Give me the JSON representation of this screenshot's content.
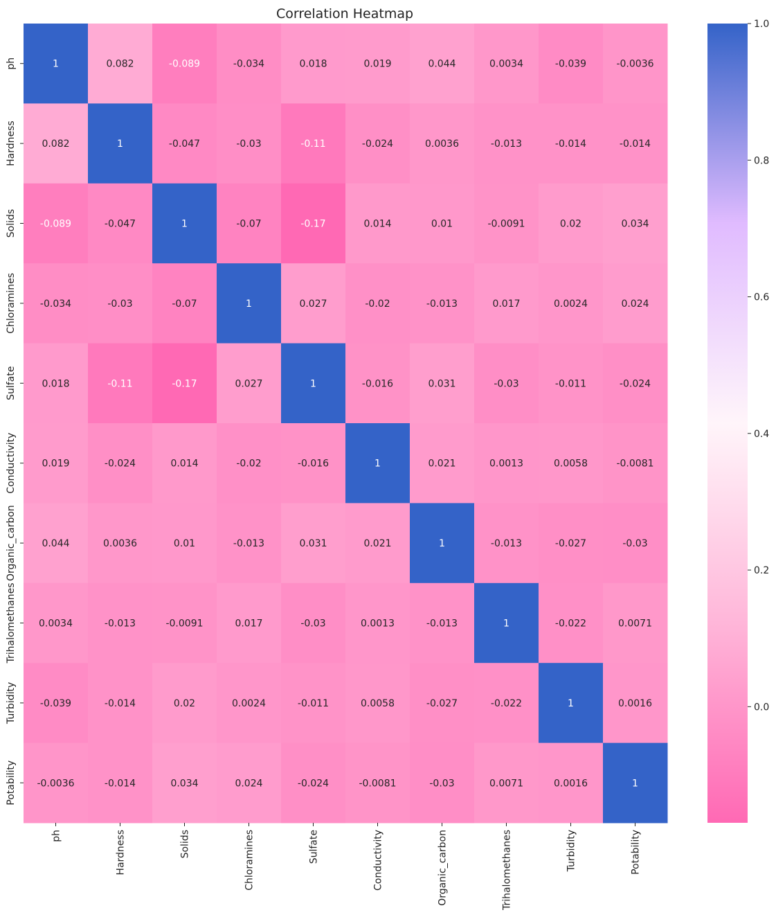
{
  "chart_data": {
    "type": "heatmap",
    "title": "Correlation Heatmap",
    "xlabel": "",
    "ylabel": "",
    "labels": [
      "ph",
      "Hardness",
      "Solids",
      "Chloramines",
      "Sulfate",
      "Conductivity",
      "Organic_carbon",
      "Trihalomethanes",
      "Turbidity",
      "Potability"
    ],
    "matrix": [
      [
        1,
        0.082,
        -0.089,
        -0.034,
        0.018,
        0.019,
        0.044,
        0.0034,
        -0.039,
        -0.0036
      ],
      [
        0.082,
        1,
        -0.047,
        -0.03,
        -0.11,
        -0.024,
        0.0036,
        -0.013,
        -0.014,
        -0.014
      ],
      [
        -0.089,
        -0.047,
        1,
        -0.07,
        -0.17,
        0.014,
        0.01,
        -0.0091,
        0.02,
        0.034
      ],
      [
        -0.034,
        -0.03,
        -0.07,
        1,
        0.027,
        -0.02,
        -0.013,
        0.017,
        0.0024,
        0.024
      ],
      [
        0.018,
        -0.11,
        -0.17,
        0.027,
        1,
        -0.016,
        0.031,
        -0.03,
        -0.011,
        -0.024
      ],
      [
        0.019,
        -0.024,
        0.014,
        -0.02,
        -0.016,
        1,
        0.021,
        0.0013,
        0.0058,
        -0.0081
      ],
      [
        0.044,
        0.0036,
        0.01,
        -0.013,
        0.031,
        0.021,
        1,
        -0.013,
        -0.027,
        -0.03
      ],
      [
        0.0034,
        -0.013,
        -0.0091,
        0.017,
        -0.03,
        0.0013,
        -0.013,
        1,
        -0.022,
        0.0071
      ],
      [
        -0.039,
        -0.014,
        0.02,
        0.0024,
        -0.011,
        0.0058,
        -0.027,
        -0.022,
        1,
        0.0016
      ],
      [
        -0.0036,
        -0.014,
        0.034,
        0.024,
        -0.024,
        -0.0081,
        -0.03,
        0.0071,
        0.0016,
        1
      ]
    ],
    "value_labels": [
      [
        "1",
        "0.082",
        "-0.089",
        "-0.034",
        "0.018",
        "0.019",
        "0.044",
        "0.0034",
        "-0.039",
        "-0.0036"
      ],
      [
        "0.082",
        "1",
        "-0.047",
        "-0.03",
        "-0.11",
        "-0.024",
        "0.0036",
        "-0.013",
        "-0.014",
        "-0.014"
      ],
      [
        "-0.089",
        "-0.047",
        "1",
        "-0.07",
        "-0.17",
        "0.014",
        "0.01",
        "-0.0091",
        "0.02",
        "0.034"
      ],
      [
        "-0.034",
        "-0.03",
        "-0.07",
        "1",
        "0.027",
        "-0.02",
        "-0.013",
        "0.017",
        "0.0024",
        "0.024"
      ],
      [
        "0.018",
        "-0.11",
        "-0.17",
        "0.027",
        "1",
        "-0.016",
        "0.031",
        "-0.03",
        "-0.011",
        "-0.024"
      ],
      [
        "0.019",
        "-0.024",
        "0.014",
        "-0.02",
        "-0.016",
        "1",
        "0.021",
        "0.0013",
        "0.0058",
        "-0.0081"
      ],
      [
        "0.044",
        "0.0036",
        "0.01",
        "-0.013",
        "0.031",
        "0.021",
        "1",
        "-0.013",
        "-0.027",
        "-0.03"
      ],
      [
        "0.0034",
        "-0.013",
        "-0.0091",
        "0.017",
        "-0.03",
        "0.0013",
        "-0.013",
        "1",
        "-0.022",
        "0.0071"
      ],
      [
        "-0.039",
        "-0.014",
        "0.02",
        "0.0024",
        "-0.011",
        "0.0058",
        "-0.027",
        "-0.022",
        "1",
        "0.0016"
      ],
      [
        "-0.0036",
        "-0.014",
        "0.034",
        "0.024",
        "-0.024",
        "-0.0081",
        "-0.03",
        "0.0071",
        "0.0016",
        "1"
      ]
    ],
    "colorbar": {
      "range": [
        -0.17,
        1.0
      ],
      "ticks": [
        0.0,
        0.2,
        0.4,
        0.6,
        0.8,
        1.0
      ],
      "tick_labels": [
        "0.0",
        "0.2",
        "0.4",
        "0.6",
        "0.8",
        "1.0"
      ],
      "colors": [
        "#ff69b4",
        "#ffb6d9",
        "#fff5fa",
        "#e0bbff",
        "#3463c8"
      ]
    },
    "grid": false,
    "legend": "right colorbar"
  }
}
